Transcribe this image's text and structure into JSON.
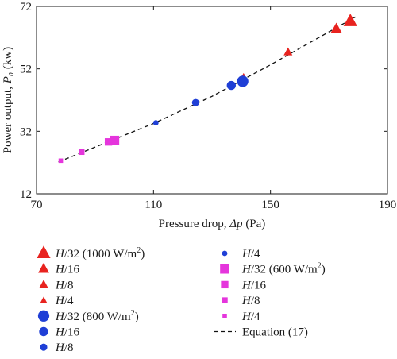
{
  "chart_data": {
    "type": "scatter",
    "xlabel": "Pressure drop, Δp (Pa)",
    "ylabel": "Power output, P₀ (kw)",
    "xlim": [
      70,
      190
    ],
    "ylim": [
      12,
      72
    ],
    "xticks": [
      70,
      110,
      150,
      190
    ],
    "yticks": [
      12,
      32,
      52,
      72
    ],
    "grid": false,
    "legend_position": "below",
    "series": [
      {
        "name": "H/32 (1000 W/m²)",
        "marker": "triangle",
        "size": "xl",
        "color": "#e8231f",
        "x": [
          177.3
        ],
        "y": [
          67.2
        ]
      },
      {
        "name": "H/16",
        "marker": "triangle",
        "size": "l",
        "color": "#e8231f",
        "x": [
          172.5
        ],
        "y": [
          64.8
        ]
      },
      {
        "name": "H/8",
        "marker": "triangle",
        "size": "m",
        "color": "#e8231f",
        "x": [
          156.0
        ],
        "y": [
          57.3
        ]
      },
      {
        "name": "H/4",
        "marker": "triangle",
        "size": "s",
        "color": "#e8231f",
        "x": [
          140.8
        ],
        "y": [
          49.5
        ]
      },
      {
        "name": "H/32 (800 W/m²)",
        "marker": "circle",
        "size": "xl",
        "color": "#1f3fd6",
        "x": [
          140.5
        ],
        "y": [
          48.0
        ]
      },
      {
        "name": "H/16",
        "marker": "circle",
        "size": "l",
        "color": "#1f3fd6",
        "x": [
          136.6
        ],
        "y": [
          46.7
        ]
      },
      {
        "name": "H/8",
        "marker": "circle",
        "size": "m",
        "color": "#1f3fd6",
        "x": [
          124.4
        ],
        "y": [
          41.2
        ]
      },
      {
        "name": "H/4",
        "marker": "circle",
        "size": "s",
        "color": "#1f3fd6",
        "x": [
          110.8
        ],
        "y": [
          34.7
        ]
      },
      {
        "name": "H/32 (600 W/m²)",
        "marker": "square",
        "size": "xl",
        "color": "#e535dc",
        "x": [
          96.7
        ],
        "y": [
          29.1
        ]
      },
      {
        "name": "H/16",
        "marker": "square",
        "size": "l",
        "color": "#e535dc",
        "x": [
          94.6
        ],
        "y": [
          28.6
        ]
      },
      {
        "name": "H/8",
        "marker": "square",
        "size": "m",
        "color": "#e535dc",
        "x": [
          85.4
        ],
        "y": [
          25.4
        ]
      },
      {
        "name": "H/4",
        "marker": "square",
        "size": "s",
        "color": "#e535dc",
        "x": [
          78.3
        ],
        "y": [
          22.6
        ]
      },
      {
        "name": "Equation (17)",
        "marker": "dashed-line",
        "color": "#111111",
        "x": [
          77.5,
          110,
          130,
          150,
          179
        ],
        "y": [
          22.2,
          34.5,
          43.2,
          53.3,
          68.6
        ]
      }
    ]
  }
}
